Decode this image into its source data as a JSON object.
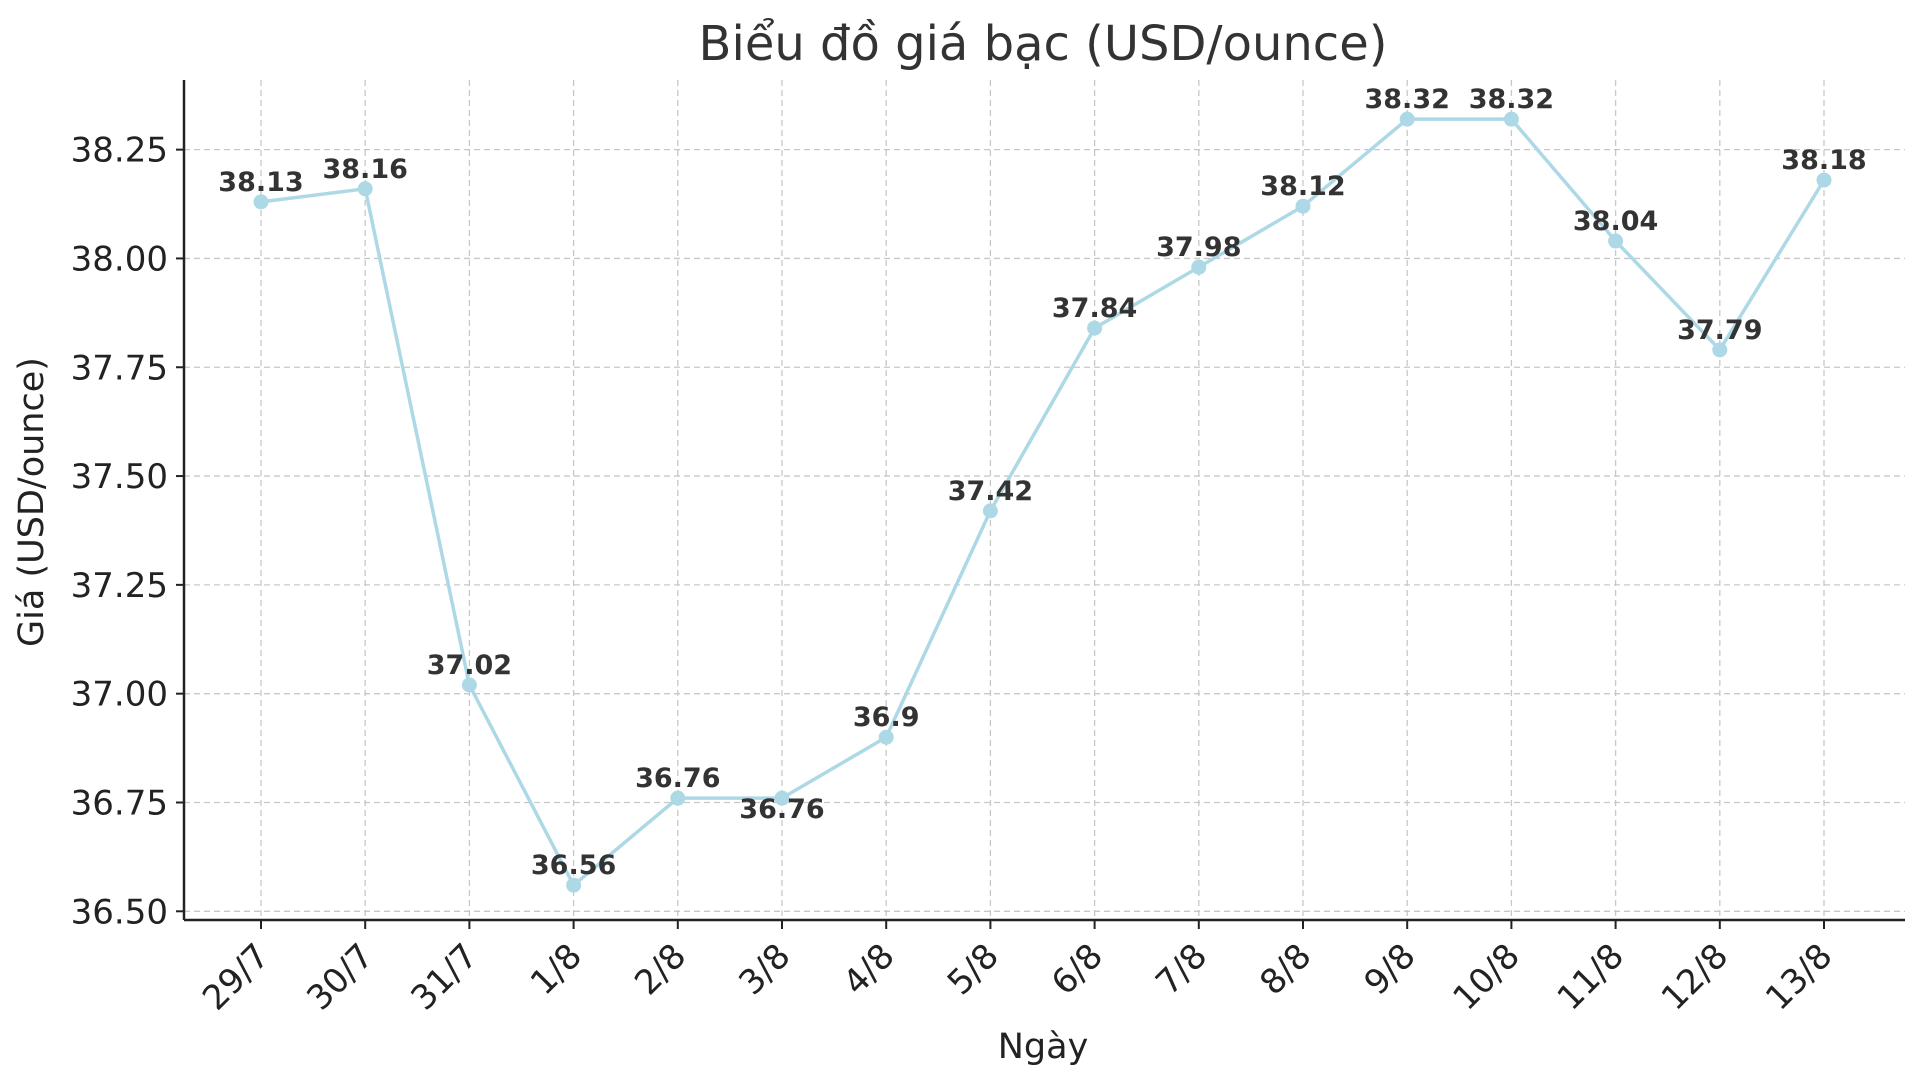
{
  "chart_data": {
    "type": "line",
    "title": "Biểu đồ giá bạc (USD/ounce)",
    "xlabel": "Ngày",
    "ylabel": "Giá (USD/ounce)",
    "categories": [
      "29/7",
      "30/7",
      "31/7",
      "1/8",
      "2/8",
      "3/8",
      "4/8",
      "5/8",
      "6/8",
      "7/8",
      "8/8",
      "9/8",
      "10/8",
      "11/8",
      "12/8",
      "13/8"
    ],
    "series": [
      {
        "values": [
          38.13,
          38.16,
          37.02,
          36.56,
          36.76,
          36.76,
          36.9,
          37.42,
          37.84,
          37.98,
          38.12,
          38.32,
          38.32,
          38.04,
          37.79,
          38.18
        ],
        "data_labels": [
          "38.13",
          "38.16",
          "37.02",
          "36.56",
          "36.76",
          "36.76",
          "36.9",
          "37.42",
          "37.84",
          "37.98",
          "38.12",
          "38.32",
          "38.32",
          "38.04",
          "37.79",
          "38.18"
        ]
      }
    ],
    "y_ticks": [
      "36.50",
      "36.75",
      "37.00",
      "37.25",
      "37.50",
      "37.75",
      "38.00",
      "38.25"
    ],
    "ylim": [
      36.48,
      38.41
    ],
    "grid": true,
    "colors": {
      "line": "#add8e6",
      "grid": "#c8c8c8",
      "axis": "#222222",
      "text": "#333333"
    }
  }
}
